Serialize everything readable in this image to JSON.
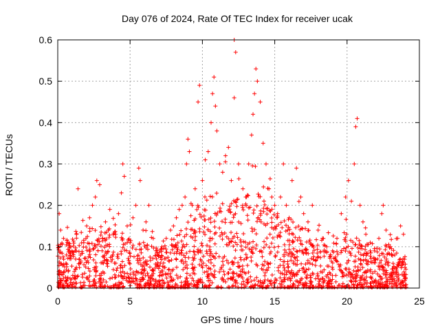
{
  "chart_data": {
    "type": "scatter",
    "title": "Day 076 of 2024, Rate Of TEC Index for receiver ucak",
    "xlabel": "GPS time / hours",
    "ylabel": "ROTI / TECUs",
    "xlim": [
      0,
      25
    ],
    "ylim": [
      0,
      0.6
    ],
    "xticks": [
      0,
      5,
      10,
      15,
      20,
      25
    ],
    "xtick_labels": [
      "0",
      "5",
      "10",
      "15",
      "20",
      "25"
    ],
    "yticks": [
      0,
      0.1,
      0.2,
      0.3,
      0.4,
      0.5,
      0.6
    ],
    "ytick_labels": [
      "0",
      "0.1",
      "0.2",
      "0.3",
      "0.4",
      "0.5",
      "0.6"
    ],
    "grid": true,
    "marker": "+",
    "series_color": "#ff0000",
    "series": [
      {
        "name": "ROTI",
        "points": [
          [
            0.1,
            0.18
          ],
          [
            0.2,
            0.14
          ],
          [
            0.4,
            0.12
          ],
          [
            0.6,
            0.08
          ],
          [
            0.9,
            0.1
          ],
          [
            1.2,
            0.09
          ],
          [
            1.3,
            0.13
          ],
          [
            1.4,
            0.24
          ],
          [
            1.5,
            0.07
          ],
          [
            1.8,
            0.11
          ],
          [
            2.0,
            0.15
          ],
          [
            2.2,
            0.17
          ],
          [
            2.4,
            0.2
          ],
          [
            2.6,
            0.22
          ],
          [
            2.7,
            0.26
          ],
          [
            2.9,
            0.25
          ],
          [
            3.1,
            0.12
          ],
          [
            3.3,
            0.16
          ],
          [
            3.5,
            0.14
          ],
          [
            3.6,
            0.19
          ],
          [
            3.8,
            0.08
          ],
          [
            4.0,
            0.13
          ],
          [
            4.2,
            0.18
          ],
          [
            4.4,
            0.23
          ],
          [
            4.5,
            0.3
          ],
          [
            4.6,
            0.27
          ],
          [
            4.8,
            0.15
          ],
          [
            5.0,
            0.11
          ],
          [
            5.2,
            0.17
          ],
          [
            5.4,
            0.2
          ],
          [
            5.6,
            0.29
          ],
          [
            5.7,
            0.26
          ],
          [
            5.9,
            0.14
          ],
          [
            6.1,
            0.16
          ],
          [
            6.3,
            0.2
          ],
          [
            6.6,
            0.12
          ],
          [
            6.9,
            0.08
          ],
          [
            7.2,
            0.1
          ],
          [
            7.5,
            0.12
          ],
          [
            7.8,
            0.14
          ],
          [
            8.0,
            0.15
          ],
          [
            8.2,
            0.17
          ],
          [
            8.4,
            0.19
          ],
          [
            8.6,
            0.2
          ],
          [
            8.8,
            0.22
          ],
          [
            8.9,
            0.3
          ],
          [
            9.0,
            0.36
          ],
          [
            9.1,
            0.33
          ],
          [
            9.3,
            0.2
          ],
          [
            9.5,
            0.24
          ],
          [
            9.7,
            0.45
          ],
          [
            9.8,
            0.49
          ],
          [
            10.0,
            0.26
          ],
          [
            10.2,
            0.31
          ],
          [
            10.4,
            0.33
          ],
          [
            10.6,
            0.4
          ],
          [
            10.7,
            0.47
          ],
          [
            10.8,
            0.51
          ],
          [
            10.9,
            0.44
          ],
          [
            11.0,
            0.38
          ],
          [
            11.2,
            0.3
          ],
          [
            11.4,
            0.28
          ],
          [
            11.6,
            0.32
          ],
          [
            11.8,
            0.34
          ],
          [
            12.0,
            0.26
          ],
          [
            12.2,
            0.6
          ],
          [
            12.3,
            0.57
          ],
          [
            12.2,
            0.46
          ],
          [
            12.5,
            0.3
          ],
          [
            12.8,
            0.24
          ],
          [
            13.0,
            0.22
          ],
          [
            13.2,
            0.3
          ],
          [
            13.4,
            0.37
          ],
          [
            13.5,
            0.42
          ],
          [
            13.6,
            0.47
          ],
          [
            13.7,
            0.53
          ],
          [
            13.8,
            0.5
          ],
          [
            14.0,
            0.45
          ],
          [
            14.2,
            0.35
          ],
          [
            14.4,
            0.3
          ],
          [
            14.6,
            0.24
          ],
          [
            14.8,
            0.22
          ],
          [
            15.0,
            0.2
          ],
          [
            15.2,
            0.18
          ],
          [
            15.4,
            0.22
          ],
          [
            15.6,
            0.3
          ],
          [
            15.8,
            0.2
          ],
          [
            16.0,
            0.17
          ],
          [
            16.2,
            0.26
          ],
          [
            16.5,
            0.29
          ],
          [
            16.8,
            0.22
          ],
          [
            17.0,
            0.18
          ],
          [
            17.3,
            0.16
          ],
          [
            17.6,
            0.2
          ],
          [
            18.0,
            0.14
          ],
          [
            18.3,
            0.12
          ],
          [
            18.6,
            0.1
          ],
          [
            19.0,
            0.09
          ],
          [
            19.3,
            0.12
          ],
          [
            19.6,
            0.18
          ],
          [
            19.9,
            0.22
          ],
          [
            20.1,
            0.26
          ],
          [
            20.3,
            0.21
          ],
          [
            20.5,
            0.3
          ],
          [
            20.6,
            0.39
          ],
          [
            20.7,
            0.41
          ],
          [
            20.9,
            0.2
          ],
          [
            21.1,
            0.16
          ],
          [
            21.3,
            0.13
          ],
          [
            21.6,
            0.11
          ],
          [
            21.9,
            0.09
          ],
          [
            22.2,
            0.12
          ],
          [
            22.4,
            0.18
          ],
          [
            22.5,
            0.2
          ],
          [
            22.7,
            0.14
          ],
          [
            23.0,
            0.1
          ],
          [
            23.3,
            0.08
          ],
          [
            23.5,
            0.12
          ],
          [
            23.7,
            0.15
          ],
          [
            23.9,
            0.13
          ],
          [
            24.0,
            0.05
          ]
        ],
        "density_profile": [
          [
            0,
            0.08
          ],
          [
            1,
            0.09
          ],
          [
            2,
            0.11
          ],
          [
            3,
            0.1
          ],
          [
            4,
            0.1
          ],
          [
            5,
            0.09
          ],
          [
            6,
            0.08
          ],
          [
            7,
            0.07
          ],
          [
            8,
            0.09
          ],
          [
            9,
            0.12
          ],
          [
            10,
            0.16
          ],
          [
            11,
            0.17
          ],
          [
            12,
            0.15
          ],
          [
            13,
            0.16
          ],
          [
            14,
            0.17
          ],
          [
            15,
            0.13
          ],
          [
            16,
            0.12
          ],
          [
            17,
            0.11
          ],
          [
            18,
            0.09
          ],
          [
            19,
            0.08
          ],
          [
            20,
            0.1
          ],
          [
            21,
            0.08
          ],
          [
            22,
            0.07
          ],
          [
            23,
            0.08
          ],
          [
            24,
            0.05
          ]
        ]
      }
    ]
  }
}
